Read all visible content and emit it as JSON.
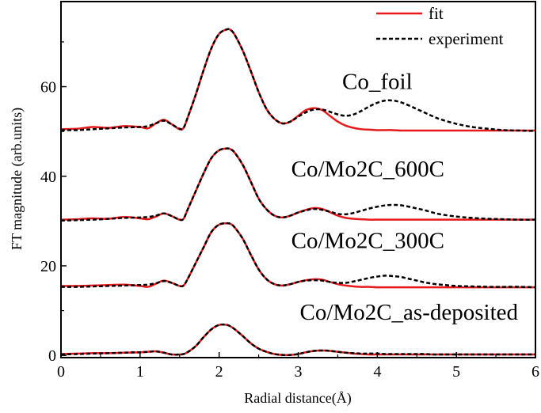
{
  "chart_data": {
    "type": "line",
    "title": "",
    "xlabel": "Radial distance(Å)",
    "ylabel": "FT magnitude (arb.units)",
    "xlim": [
      0,
      6
    ],
    "ylim": [
      -0.5,
      79
    ],
    "xticks": [
      "0",
      "1",
      "2",
      "3",
      "4",
      "5",
      "6"
    ],
    "yticks": [
      "0",
      "20",
      "40",
      "60"
    ],
    "grid": false,
    "legend_position": "top-right",
    "legend": [
      {
        "label": "fit",
        "color": "#e8191a",
        "style": "solid"
      },
      {
        "label": "experiment",
        "color": "#000000",
        "style": "dashed"
      }
    ],
    "annotations": [
      {
        "text": "Co_foil",
        "x": 4.0,
        "y": 59.5
      },
      {
        "text": "Co/Mo2C_600C",
        "x": 3.88,
        "y": 40
      },
      {
        "text": "Co/Mo2C_300C",
        "x": 3.88,
        "y": 24
      },
      {
        "text": "Co/Mo2C_as-deposited",
        "x": 4.4,
        "y": 8
      }
    ],
    "x": [
      0.0,
      0.2,
      0.4,
      0.6,
      0.8,
      1.0,
      1.1,
      1.2,
      1.3,
      1.4,
      1.5,
      1.55,
      1.6,
      1.7,
      1.8,
      1.9,
      2.0,
      2.1,
      2.15,
      2.2,
      2.3,
      2.4,
      2.5,
      2.6,
      2.7,
      2.8,
      2.9,
      3.0,
      3.1,
      3.2,
      3.3,
      3.4,
      3.5,
      3.6,
      3.7,
      3.8,
      3.9,
      4.0,
      4.1,
      4.2,
      4.3,
      4.4,
      4.5,
      4.6,
      4.7,
      4.8,
      5.0,
      5.2,
      5.4,
      5.6,
      5.8,
      6.0
    ],
    "series": [
      {
        "name": "Co_foil fit",
        "group": "fit",
        "values": [
          50.5,
          50.6,
          51.0,
          50.8,
          51.2,
          51.0,
          50.7,
          51.8,
          52.6,
          51.6,
          50.5,
          50.8,
          53.0,
          58.0,
          63.5,
          68.5,
          71.8,
          72.8,
          72.6,
          71.5,
          68.0,
          63.5,
          58.8,
          55.0,
          52.8,
          51.8,
          52.2,
          53.5,
          54.8,
          55.2,
          54.8,
          53.5,
          52.2,
          51.3,
          50.8,
          50.5,
          50.4,
          50.3,
          50.3,
          50.3,
          50.2,
          50.2,
          50.2,
          50.2,
          50.2,
          50.2,
          50.2,
          50.2,
          50.2,
          50.2,
          50.2,
          50.2
        ]
      },
      {
        "name": "Co_foil experiment",
        "group": "experiment",
        "values": [
          50.3,
          50.3,
          50.5,
          50.7,
          50.9,
          51.0,
          51.2,
          51.8,
          52.4,
          51.6,
          50.6,
          50.8,
          53.0,
          58.0,
          63.5,
          68.5,
          71.8,
          72.8,
          72.6,
          71.5,
          68.0,
          63.5,
          58.8,
          55.0,
          52.8,
          51.8,
          52.2,
          53.3,
          54.3,
          54.9,
          54.9,
          54.4,
          53.8,
          53.5,
          53.8,
          54.6,
          55.6,
          56.4,
          56.9,
          56.9,
          56.5,
          55.8,
          55.0,
          54.2,
          53.4,
          52.7,
          51.7,
          51.0,
          50.6,
          50.3,
          50.2,
          50.1
        ]
      },
      {
        "name": "Co/Mo2C_600C fit",
        "group": "fit",
        "values": [
          30.3,
          30.4,
          30.6,
          30.5,
          30.9,
          30.6,
          30.4,
          31.0,
          31.7,
          31.1,
          30.3,
          30.5,
          32.5,
          36.5,
          40.5,
          44.0,
          45.8,
          46.2,
          46.0,
          45.2,
          42.5,
          38.8,
          35.0,
          32.6,
          31.2,
          30.8,
          31.2,
          31.9,
          32.5,
          32.9,
          32.7,
          32.0,
          31.2,
          30.7,
          30.5,
          30.4,
          30.3,
          30.3,
          30.3,
          30.3,
          30.3,
          30.3,
          30.3,
          30.3,
          30.3,
          30.3,
          30.3,
          30.3,
          30.3,
          30.3,
          30.3,
          30.3
        ]
      },
      {
        "name": "Co/Mo2C_600C experiment",
        "group": "experiment",
        "values": [
          30.1,
          30.2,
          30.3,
          30.5,
          30.7,
          30.8,
          30.9,
          31.2,
          31.7,
          31.1,
          30.3,
          30.5,
          32.5,
          36.5,
          40.5,
          44.0,
          45.8,
          46.2,
          46.0,
          45.2,
          42.5,
          38.8,
          35.0,
          32.6,
          31.2,
          30.8,
          31.2,
          31.9,
          32.4,
          32.7,
          32.5,
          32.1,
          31.6,
          31.5,
          31.8,
          32.3,
          32.8,
          33.2,
          33.5,
          33.6,
          33.5,
          33.2,
          32.8,
          32.4,
          31.9,
          31.5,
          31.0,
          30.7,
          30.5,
          30.4,
          30.3,
          30.3
        ]
      },
      {
        "name": "Co/Mo2C_300C fit",
        "group": "fit",
        "values": [
          15.5,
          15.5,
          15.6,
          15.7,
          15.8,
          15.5,
          15.3,
          16.0,
          16.7,
          16.2,
          15.5,
          15.6,
          17.0,
          20.5,
          24.0,
          27.5,
          29.2,
          29.5,
          29.3,
          28.5,
          26.0,
          22.5,
          19.2,
          17.0,
          15.9,
          15.6,
          15.9,
          16.4,
          16.8,
          17.0,
          16.9,
          16.4,
          15.9,
          15.6,
          15.4,
          15.3,
          15.3,
          15.2,
          15.2,
          15.2,
          15.2,
          15.2,
          15.2,
          15.2,
          15.2,
          15.2,
          15.2,
          15.2,
          15.2,
          15.2,
          15.2,
          15.2
        ]
      },
      {
        "name": "Co/Mo2C_300C experiment",
        "group": "experiment",
        "values": [
          15.3,
          15.3,
          15.4,
          15.5,
          15.6,
          15.7,
          15.8,
          16.1,
          16.6,
          16.2,
          15.5,
          15.6,
          17.0,
          20.5,
          24.0,
          27.5,
          29.2,
          29.5,
          29.3,
          28.5,
          26.0,
          22.5,
          19.2,
          17.0,
          15.9,
          15.6,
          15.9,
          16.4,
          16.7,
          16.8,
          16.7,
          16.4,
          16.2,
          16.2,
          16.5,
          16.9,
          17.3,
          17.6,
          17.8,
          17.7,
          17.5,
          17.1,
          16.7,
          16.3,
          16.0,
          15.8,
          15.5,
          15.4,
          15.3,
          15.3,
          15.3,
          15.2
        ]
      },
      {
        "name": "Co/Mo2C_as-deposited fit",
        "group": "fit",
        "values": [
          0.3,
          0.4,
          0.5,
          0.5,
          0.6,
          0.7,
          0.8,
          0.9,
          0.6,
          0.2,
          0.2,
          0.3,
          0.7,
          2.0,
          4.0,
          5.8,
          6.8,
          6.8,
          6.4,
          5.8,
          4.3,
          2.7,
          1.5,
          0.8,
          0.3,
          0.1,
          0.1,
          0.3,
          0.7,
          1.0,
          1.1,
          1.0,
          0.8,
          0.6,
          0.4,
          0.3,
          0.2,
          0.2,
          0.2,
          0.2,
          0.2,
          0.2,
          0.2,
          0.2,
          0.2,
          0.2,
          0.2,
          0.2,
          0.2,
          0.2,
          0.2,
          0.2
        ]
      },
      {
        "name": "Co/Mo2C_as-deposited experiment",
        "group": "experiment",
        "values": [
          0.2,
          0.3,
          0.4,
          0.5,
          0.6,
          0.7,
          0.8,
          0.9,
          0.6,
          0.2,
          0.2,
          0.3,
          0.7,
          2.0,
          4.0,
          5.8,
          6.8,
          6.8,
          6.4,
          5.8,
          4.3,
          2.7,
          1.5,
          0.8,
          0.3,
          0.1,
          0.1,
          0.3,
          0.7,
          1.0,
          1.1,
          1.0,
          0.8,
          0.6,
          0.5,
          0.4,
          0.4,
          0.4,
          0.3,
          0.3,
          0.3,
          0.3,
          0.3,
          0.3,
          0.2,
          0.2,
          0.2,
          0.2,
          0.2,
          0.2,
          0.2,
          0.2
        ]
      }
    ]
  }
}
